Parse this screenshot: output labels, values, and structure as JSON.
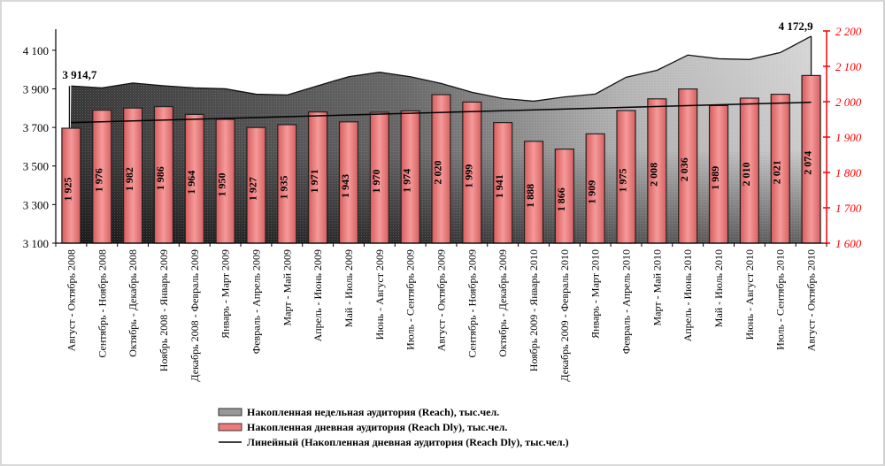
{
  "chart_data": {
    "type": "bar",
    "categories": [
      "Август - Октябрь 2008",
      "Сентябрь - Ноябрь 2008",
      "Октябрь - Декабрь 2008",
      "Ноябрь 2008 - Январь 2009",
      "Декабрь 2008 - Февраль 2009",
      "Январь - Март 2009",
      "Февраль - Апрель 2009",
      "Март - Май 2009",
      "Апрель - Июнь 2009",
      "Май - Июль 2009",
      "Июнь - Август 2009",
      "Июль - Сентябрь 2009",
      "Август - Октябрь 2009",
      "Сентябрь - Ноябрь 2009",
      "Октябрь - Декабрь 2009",
      "Ноябрь 2009 - Январь 2010",
      "Декабрь 2009 - Февраль 2010",
      "Январь - Март 2010",
      "Февраль - Апрель 2010",
      "Март - Май 2010",
      "Апрель - Июнь 2010",
      "Май - Июль 2010",
      "Июнь - Август 2010",
      "Июль - Сентябрь 2010",
      "Август - Октябрь 2010"
    ],
    "series": [
      {
        "name": "Накопленная недельная аудитория (Reach), тыс.чел.",
        "type": "area",
        "axis": "left",
        "values": [
          3914.7,
          3905,
          3930,
          3916,
          3905,
          3900,
          3872,
          3868,
          3916,
          3963,
          3986,
          3963,
          3928,
          3882,
          3850,
          3836,
          3858,
          3873,
          3960,
          3996,
          4075,
          4056,
          4052,
          4088,
          4172.9
        ]
      },
      {
        "name": "Накопленная дневная аудитория (Reach Dly), тыс.чел.",
        "type": "bar",
        "axis": "right",
        "values": [
          1925,
          1976,
          1982,
          1986,
          1964,
          1950,
          1927,
          1935,
          1971,
          1943,
          1970,
          1974,
          2020,
          1999,
          1941,
          1888,
          1866,
          1909,
          1975,
          2008,
          2036,
          1989,
          2010,
          2021,
          2074
        ],
        "labels": [
          "1 925",
          "1 976",
          "1 982",
          "1 986",
          "1 964",
          "1 950",
          "1 927",
          "1 935",
          "1 971",
          "1 943",
          "1 970",
          "1 974",
          "2 020",
          "1 999",
          "1 941",
          "1 888",
          "1 866",
          "1 909",
          "1 975",
          "2 008",
          "2 036",
          "1 989",
          "2 010",
          "2 021",
          "2 074"
        ]
      },
      {
        "name": "Линейный (Накопленная дневная аудитория (Reach Dly), тыс.чел.)",
        "type": "trendline",
        "axis": "right"
      }
    ],
    "area_annotations": {
      "first": "3 914,7",
      "last": "4 172,9"
    },
    "y_left": {
      "ylim": [
        3100,
        4200
      ],
      "ticks": [
        3100,
        3300,
        3500,
        3700,
        3900,
        4100
      ],
      "tick_labels": [
        "3 100",
        "3 300",
        "3 500",
        "3 700",
        "3 900",
        "4 100"
      ]
    },
    "y_right": {
      "ylim": [
        1600,
        2200
      ],
      "ticks": [
        1600,
        1700,
        1800,
        1900,
        2000,
        2100,
        2200
      ],
      "tick_labels": [
        "1 600",
        "1 700",
        "1 800",
        "1 900",
        "2 000",
        "2 100",
        "2 200"
      ],
      "color": "#ff0000"
    },
    "legend_position": "bottom",
    "colors": {
      "bar": "#f07a7a",
      "area_dark": "#3c3c3c",
      "area_light": "#d0d0d0",
      "trend": "#000000"
    }
  }
}
